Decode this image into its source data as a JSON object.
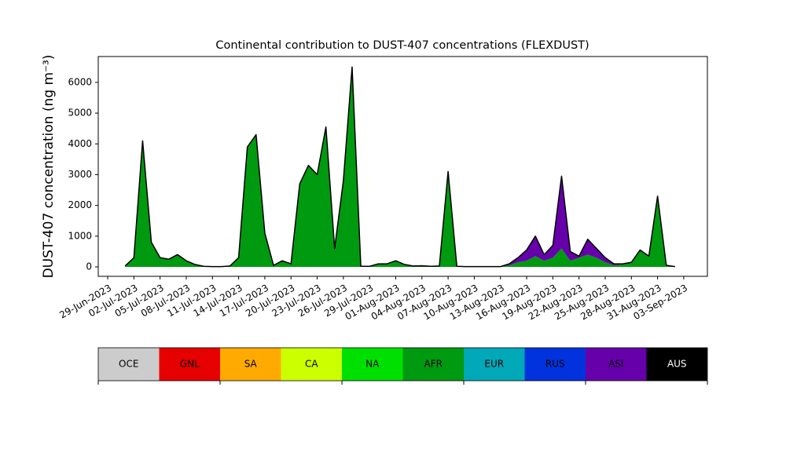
{
  "chart_data": {
    "type": "stacked_area",
    "title": "Continental contribution to DUST-407 concentrations (FLEXDUST)",
    "y_label": "DUST-407 concentration (ng m⁻³)",
    "x": [
      "2023-07-01",
      "2023-07-02",
      "2023-07-03",
      "2023-07-04",
      "2023-07-05",
      "2023-07-06",
      "2023-07-07",
      "2023-07-08",
      "2023-07-09",
      "2023-07-10",
      "2023-07-11",
      "2023-07-12",
      "2023-07-13",
      "2023-07-14",
      "2023-07-15",
      "2023-07-16",
      "2023-07-17",
      "2023-07-18",
      "2023-07-19",
      "2023-07-20",
      "2023-07-21",
      "2023-07-22",
      "2023-07-23",
      "2023-07-24",
      "2023-07-25",
      "2023-07-26",
      "2023-07-27",
      "2023-07-28",
      "2023-07-29",
      "2023-07-30",
      "2023-07-31",
      "2023-08-01",
      "2023-08-02",
      "2023-08-03",
      "2023-08-04",
      "2023-08-05",
      "2023-08-06",
      "2023-08-07",
      "2023-08-08",
      "2023-08-09",
      "2023-08-10",
      "2023-08-11",
      "2023-08-12",
      "2023-08-13",
      "2023-08-14",
      "2023-08-15",
      "2023-08-16",
      "2023-08-17",
      "2023-08-18",
      "2023-08-19",
      "2023-08-20",
      "2023-08-21",
      "2023-08-22",
      "2023-08-23",
      "2023-08-24",
      "2023-08-25",
      "2023-08-26",
      "2023-08-27",
      "2023-08-28",
      "2023-08-29",
      "2023-08-30",
      "2023-08-31",
      "2023-09-01",
      "2023-09-02"
    ],
    "series": [
      {
        "name": "OCE",
        "color": "#cccccc",
        "values": [
          0,
          0,
          0,
          0,
          0,
          0,
          0,
          0,
          0,
          0,
          0,
          0,
          0,
          0,
          0,
          0,
          0,
          0,
          0,
          0,
          0,
          0,
          0,
          0,
          0,
          0,
          0,
          0,
          0,
          0,
          0,
          0,
          0,
          0,
          0,
          0,
          0,
          0,
          0,
          0,
          0,
          0,
          0,
          0,
          0,
          0,
          0,
          0,
          0,
          0,
          0,
          0,
          0,
          0,
          0,
          0,
          0,
          0,
          0,
          0,
          0,
          0,
          0,
          0
        ]
      },
      {
        "name": "GNL",
        "color": "#e60000",
        "values": [
          0,
          0,
          0,
          0,
          0,
          0,
          0,
          0,
          0,
          0,
          0,
          0,
          0,
          0,
          0,
          0,
          0,
          0,
          0,
          0,
          0,
          0,
          0,
          0,
          0,
          0,
          0,
          0,
          0,
          0,
          0,
          0,
          0,
          0,
          0,
          0,
          0,
          0,
          0,
          0,
          0,
          0,
          0,
          0,
          0,
          0,
          0,
          0,
          0,
          0,
          0,
          0,
          0,
          0,
          0,
          0,
          0,
          0,
          0,
          0,
          0,
          0,
          0,
          0
        ]
      },
      {
        "name": "SA",
        "color": "#ffaa00",
        "values": [
          0,
          0,
          0,
          0,
          0,
          0,
          0,
          0,
          0,
          0,
          0,
          0,
          0,
          0,
          0,
          0,
          0,
          0,
          0,
          0,
          0,
          0,
          0,
          0,
          0,
          0,
          0,
          0,
          0,
          0,
          0,
          0,
          0,
          0,
          0,
          0,
          0,
          0,
          0,
          0,
          0,
          0,
          0,
          0,
          0,
          0,
          0,
          0,
          0,
          0,
          0,
          0,
          0,
          0,
          0,
          0,
          0,
          0,
          0,
          0,
          0,
          0,
          0,
          0
        ]
      },
      {
        "name": "CA",
        "color": "#ccff00",
        "values": [
          0,
          0,
          0,
          0,
          0,
          0,
          0,
          0,
          0,
          0,
          0,
          0,
          0,
          0,
          0,
          0,
          0,
          0,
          0,
          0,
          0,
          0,
          0,
          0,
          0,
          0,
          0,
          0,
          0,
          0,
          0,
          0,
          0,
          0,
          0,
          0,
          0,
          0,
          0,
          0,
          0,
          0,
          0,
          0,
          0,
          0,
          0,
          0,
          0,
          0,
          0,
          0,
          0,
          0,
          0,
          0,
          0,
          0,
          0,
          0,
          0,
          0,
          0,
          0
        ]
      },
      {
        "name": "NA",
        "color": "#00e000",
        "values": [
          0,
          0,
          0,
          0,
          0,
          0,
          0,
          0,
          0,
          0,
          0,
          0,
          0,
          0,
          0,
          0,
          0,
          0,
          0,
          0,
          0,
          0,
          0,
          0,
          0,
          0,
          0,
          0,
          0,
          0,
          0,
          0,
          0,
          0,
          0,
          0,
          0,
          0,
          0,
          0,
          0,
          0,
          0,
          0,
          0,
          0,
          0,
          0,
          0,
          0,
          0,
          0,
          0,
          0,
          0,
          0,
          0,
          0,
          0,
          0,
          0,
          0,
          0,
          0
        ]
      },
      {
        "name": "AFR",
        "color": "#009a10",
        "values": [
          30,
          300,
          4100,
          800,
          300,
          250,
          400,
          200,
          80,
          20,
          10,
          10,
          30,
          300,
          3900,
          4300,
          1100,
          50,
          200,
          100,
          2700,
          3300,
          3000,
          4550,
          600,
          2800,
          6500,
          20,
          20,
          100,
          100,
          200,
          80,
          30,
          40,
          20,
          30,
          3100,
          20,
          10,
          10,
          10,
          10,
          10,
          50,
          150,
          200,
          350,
          200,
          300,
          600,
          200,
          300,
          400,
          300,
          150,
          50,
          80,
          150,
          550,
          350,
          2300,
          50,
          10
        ]
      },
      {
        "name": "EUR",
        "color": "#00a8b8",
        "values": [
          0,
          0,
          0,
          0,
          0,
          0,
          0,
          0,
          0,
          0,
          0,
          0,
          0,
          0,
          0,
          0,
          0,
          0,
          0,
          0,
          0,
          0,
          0,
          0,
          0,
          0,
          0,
          0,
          0,
          0,
          0,
          0,
          0,
          0,
          0,
          0,
          0,
          0,
          0,
          0,
          0,
          0,
          0,
          0,
          0,
          0,
          0,
          0,
          0,
          0,
          0,
          0,
          0,
          0,
          0,
          0,
          0,
          0,
          0,
          0,
          0,
          0,
          0,
          0
        ]
      },
      {
        "name": "RUS",
        "color": "#0033dd",
        "values": [
          0,
          0,
          0,
          0,
          0,
          0,
          0,
          0,
          0,
          0,
          0,
          0,
          0,
          0,
          0,
          0,
          0,
          0,
          0,
          0,
          0,
          0,
          0,
          0,
          0,
          0,
          0,
          0,
          0,
          0,
          0,
          0,
          0,
          0,
          0,
          0,
          0,
          0,
          0,
          0,
          0,
          0,
          0,
          0,
          0,
          0,
          0,
          0,
          0,
          0,
          0,
          0,
          0,
          0,
          0,
          0,
          0,
          0,
          0,
          0,
          0,
          0,
          0,
          0
        ]
      },
      {
        "name": "ASI",
        "color": "#6600aa",
        "values": [
          0,
          0,
          0,
          0,
          0,
          0,
          0,
          0,
          0,
          0,
          0,
          0,
          0,
          0,
          0,
          0,
          0,
          0,
          0,
          0,
          0,
          0,
          0,
          0,
          0,
          0,
          0,
          0,
          0,
          0,
          0,
          0,
          0,
          0,
          0,
          0,
          0,
          0,
          0,
          0,
          0,
          0,
          0,
          0,
          50,
          150,
          350,
          650,
          200,
          400,
          2350,
          300,
          50,
          500,
          300,
          150,
          50,
          20,
          0,
          0,
          0,
          0,
          0,
          0
        ]
      },
      {
        "name": "AUS",
        "color": "#000000",
        "values": [
          0,
          0,
          0,
          0,
          0,
          0,
          0,
          0,
          0,
          0,
          0,
          0,
          0,
          0,
          0,
          0,
          0,
          0,
          0,
          0,
          0,
          0,
          0,
          0,
          0,
          0,
          0,
          0,
          0,
          0,
          0,
          0,
          0,
          0,
          0,
          0,
          0,
          0,
          0,
          0,
          0,
          0,
          0,
          0,
          0,
          0,
          0,
          0,
          0,
          0,
          0,
          0,
          0,
          0,
          0,
          0,
          0,
          0,
          0,
          0,
          0,
          0,
          0,
          0
        ]
      }
    ],
    "xlim": [
      "2023-06-27T22:00:00Z",
      "2023-09-05T17:00:00Z"
    ],
    "xticks": [
      {
        "value": "2023-06-29",
        "label": "29-Jun-2023"
      },
      {
        "value": "2023-07-02",
        "label": "02-Jul-2023"
      },
      {
        "value": "2023-07-05",
        "label": "05-Jul-2023"
      },
      {
        "value": "2023-07-08",
        "label": "08-Jul-2023"
      },
      {
        "value": "2023-07-11",
        "label": "11-Jul-2023"
      },
      {
        "value": "2023-07-14",
        "label": "14-Jul-2023"
      },
      {
        "value": "2023-07-17",
        "label": "17-Jul-2023"
      },
      {
        "value": "2023-07-20",
        "label": "20-Jul-2023"
      },
      {
        "value": "2023-07-23",
        "label": "23-Jul-2023"
      },
      {
        "value": "2023-07-26",
        "label": "26-Jul-2023"
      },
      {
        "value": "2023-07-29",
        "label": "29-Jul-2023"
      },
      {
        "value": "2023-08-01",
        "label": "01-Aug-2023"
      },
      {
        "value": "2023-08-04",
        "label": "04-Aug-2023"
      },
      {
        "value": "2023-08-07",
        "label": "07-Aug-2023"
      },
      {
        "value": "2023-08-10",
        "label": "10-Aug-2023"
      },
      {
        "value": "2023-08-13",
        "label": "13-Aug-2023"
      },
      {
        "value": "2023-08-16",
        "label": "16-Aug-2023"
      },
      {
        "value": "2023-08-19",
        "label": "19-Aug-2023"
      },
      {
        "value": "2023-08-22",
        "label": "22-Aug-2023"
      },
      {
        "value": "2023-08-25",
        "label": "25-Aug-2023"
      },
      {
        "value": "2023-08-28",
        "label": "28-Aug-2023"
      },
      {
        "value": "2023-08-31",
        "label": "31-Aug-2023"
      },
      {
        "value": "2023-09-03",
        "label": "03-Sep-2023"
      }
    ],
    "ylim": [
      -306,
      6840
    ],
    "yticks": [
      0,
      1000,
      2000,
      3000,
      4000,
      5000,
      6000
    ],
    "grid": false,
    "legend": "below"
  }
}
